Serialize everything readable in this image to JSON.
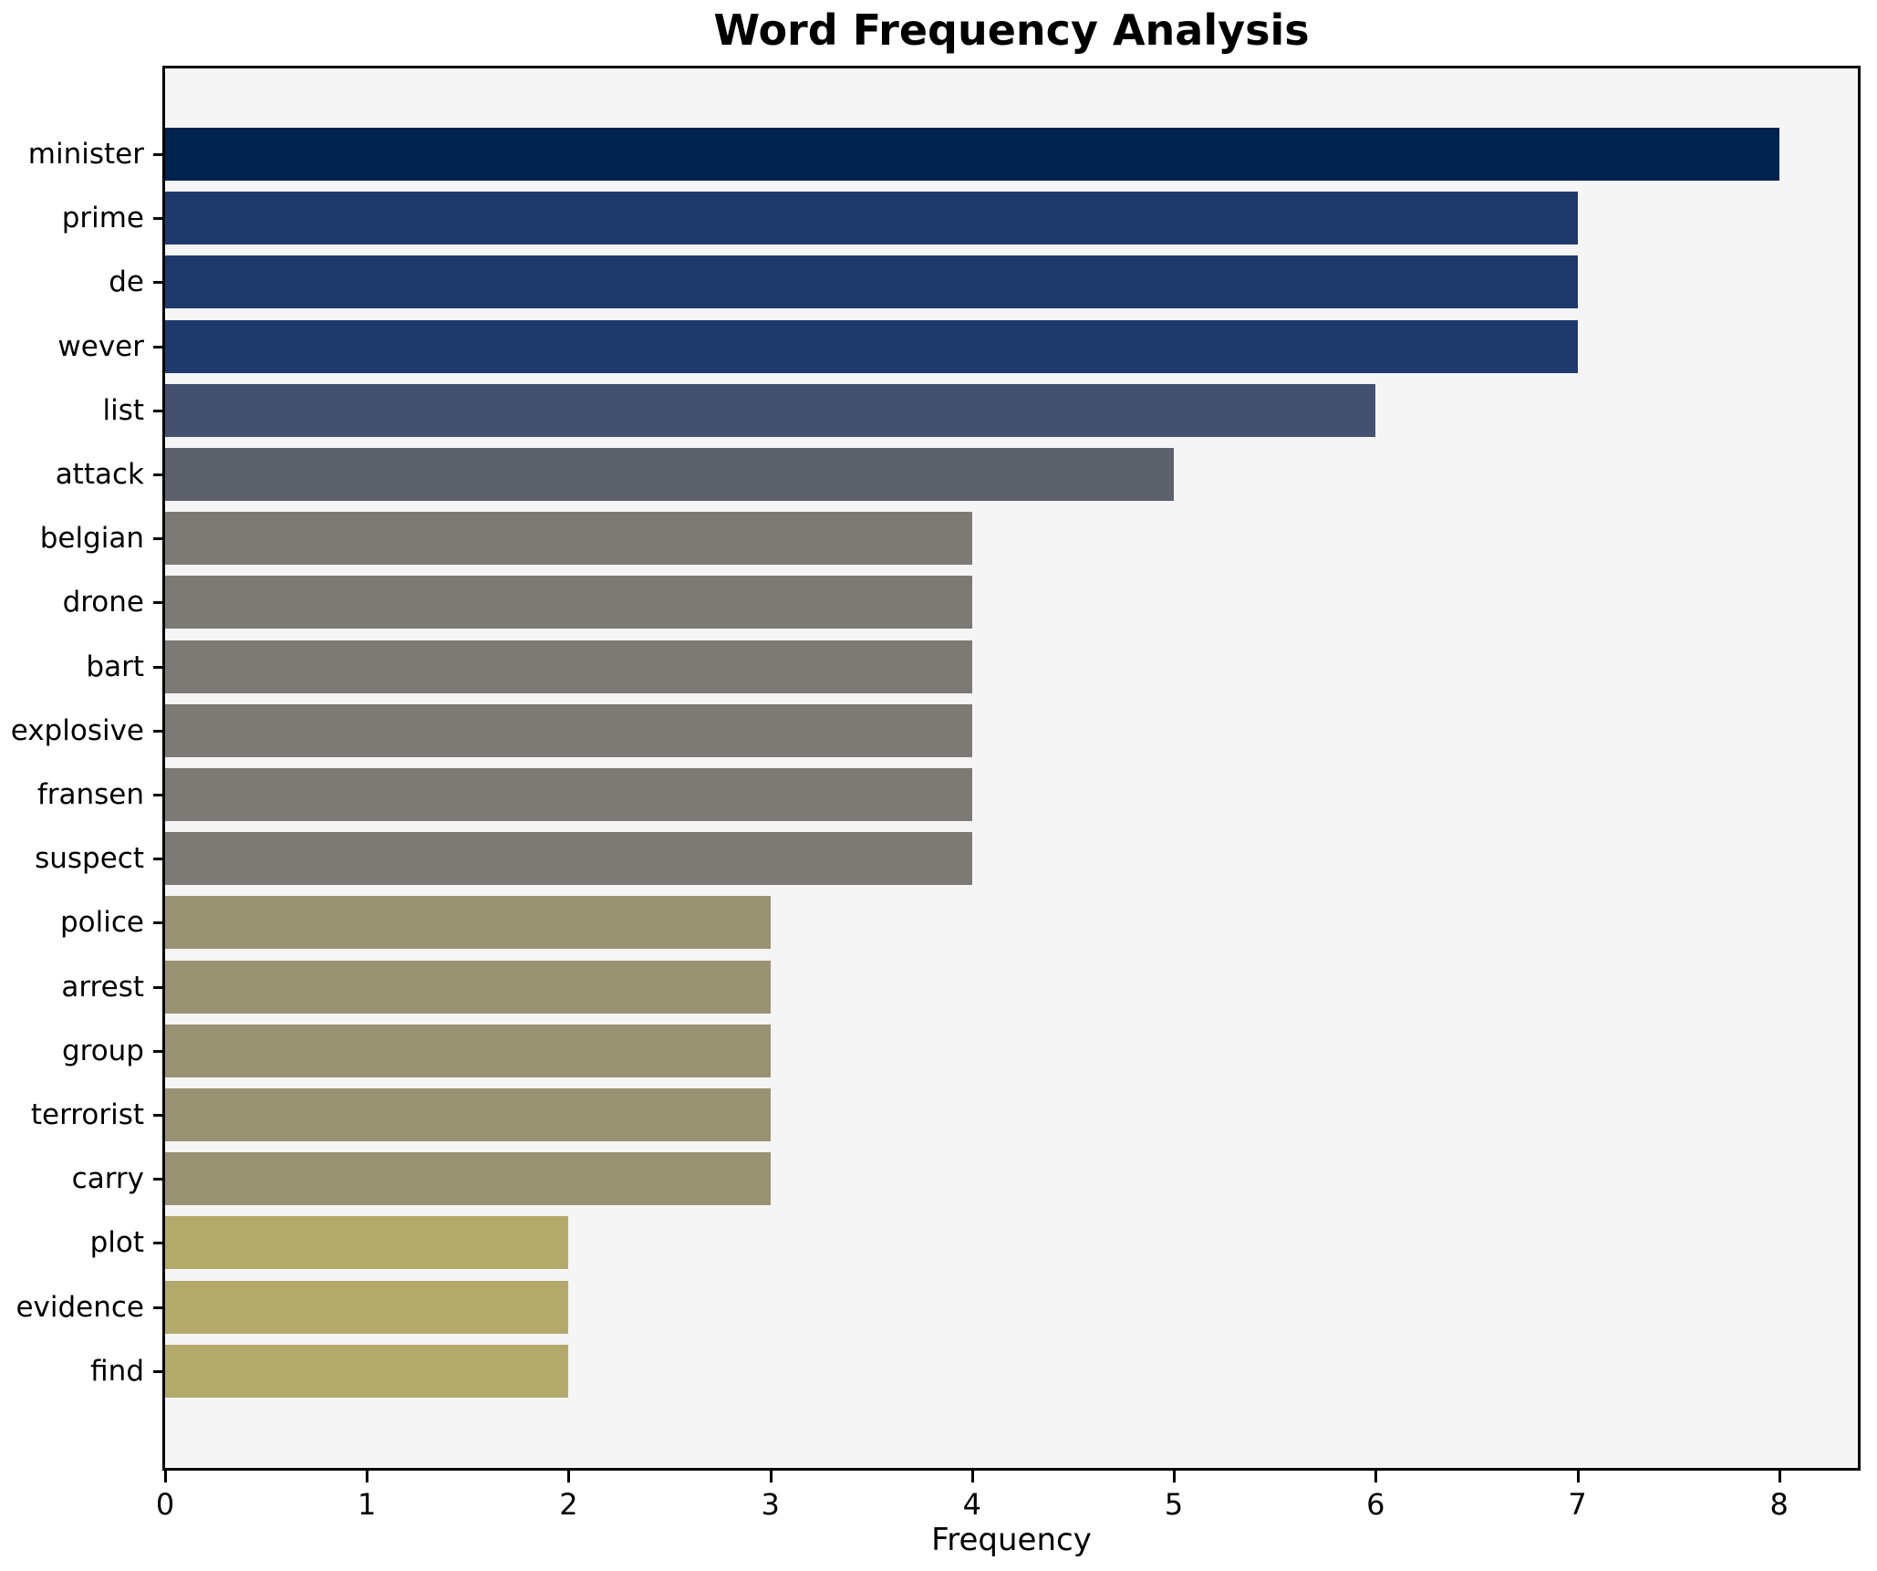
{
  "chart_data": {
    "type": "bar",
    "orientation": "horizontal",
    "title": "Word Frequency Analysis",
    "xlabel": "Frequency",
    "ylabel": "",
    "categories": [
      "minister",
      "prime",
      "de",
      "wever",
      "list",
      "attack",
      "belgian",
      "drone",
      "bart",
      "explosive",
      "fransen",
      "suspect",
      "police",
      "arrest",
      "group",
      "terrorist",
      "carry",
      "plot",
      "evidence",
      "find"
    ],
    "values": [
      8,
      7,
      7,
      7,
      6,
      5,
      4,
      4,
      4,
      4,
      4,
      4,
      3,
      3,
      3,
      3,
      3,
      2,
      2,
      2
    ],
    "bar_colors": [
      "#00224e",
      "#1e3a6d",
      "#1e3a6d",
      "#1e3a6d",
      "#44506f",
      "#5d616c",
      "#7b7a74",
      "#7b7a74",
      "#7b7a74",
      "#7b7a74",
      "#7b7a74",
      "#7b7a74",
      "#999273",
      "#999273",
      "#999273",
      "#999273",
      "#999273",
      "#b3a96b",
      "#b3a96b",
      "#b3a96b"
    ],
    "xticks": [
      0,
      1,
      2,
      3,
      4,
      5,
      6,
      7,
      8
    ],
    "xlim": [
      0,
      8.39
    ],
    "grid": false,
    "legend": null,
    "plot_background": "#f5f5f6",
    "figure_background": "#ffffff",
    "frame_color": "#000000"
  }
}
